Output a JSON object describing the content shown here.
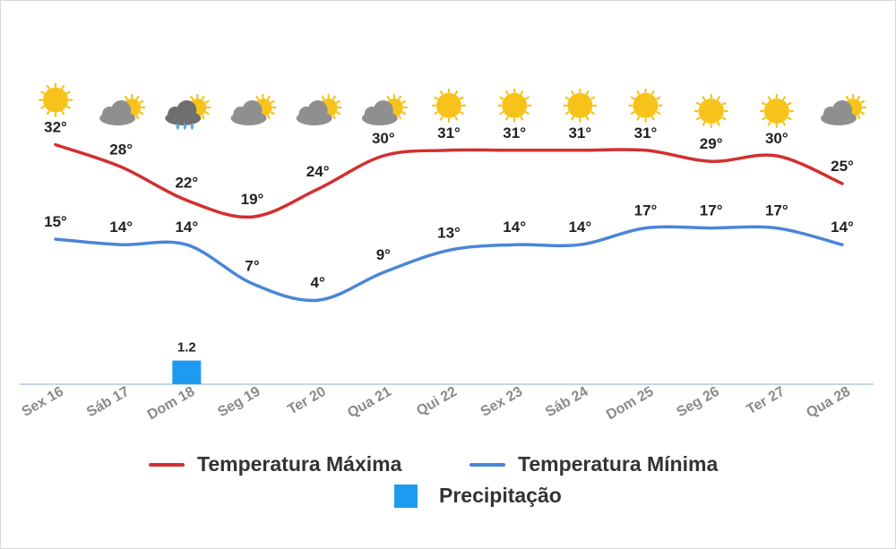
{
  "chart_data": {
    "type": "line",
    "categories": [
      "Sex 16",
      "Sáb 17",
      "Dom 18",
      "Seg 19",
      "Ter 20",
      "Qua 21",
      "Qui 22",
      "Sex 23",
      "Sáb 24",
      "Dom 25",
      "Seg 26",
      "Ter 27",
      "Qua 28"
    ],
    "series": [
      {
        "name": "Temperatura Máxima",
        "type": "line",
        "color": "#d32f2f",
        "values": [
          32,
          28,
          22,
          19,
          24,
          30,
          31,
          31,
          31,
          31,
          29,
          30,
          25
        ],
        "labels": [
          "32°",
          "28°",
          "22°",
          "19°",
          "24°",
          "30°",
          "31°",
          "31°",
          "31°",
          "31°",
          "29°",
          "30°",
          "25°"
        ]
      },
      {
        "name": "Temperatura Mínima",
        "type": "line",
        "color": "#4a86d8",
        "values": [
          15,
          14,
          14,
          7,
          4,
          9,
          13,
          14,
          14,
          17,
          17,
          17,
          14
        ],
        "labels": [
          "15°",
          "14°",
          "14°",
          "7°",
          "4°",
          "9°",
          "13°",
          "14°",
          "14°",
          "17°",
          "17°",
          "17°",
          "14°"
        ]
      },
      {
        "name": "Precipitação",
        "type": "bar",
        "color": "#1e9bf0",
        "values": [
          0,
          0,
          1.2,
          0,
          0,
          0,
          0,
          0,
          0,
          0,
          0,
          0,
          0
        ],
        "labels": [
          "",
          "",
          "1.2",
          "",
          "",
          "",
          "",
          "",
          "",
          "",
          "",
          "",
          ""
        ]
      }
    ],
    "icons": [
      "sun-icon",
      "partly-cloudy-icon",
      "rain-cloud-icon",
      "partly-cloudy-icon",
      "partly-cloudy-icon",
      "partly-cloudy-icon",
      "sun-icon",
      "sun-icon",
      "sun-icon",
      "sun-icon",
      "sun-icon",
      "sun-icon",
      "partly-cloudy-icon"
    ],
    "legend_position": "bottom",
    "grid": false,
    "colors": {
      "sun": "#f7c31b",
      "cloud": "#8f8f8f",
      "rain": "#5aa9e6",
      "axis": "#c5d6e8"
    }
  },
  "legend": {
    "max_label": "Temperatura Máxima",
    "min_label": "Temperatura Mínima",
    "precip_label": "Precipitação"
  }
}
